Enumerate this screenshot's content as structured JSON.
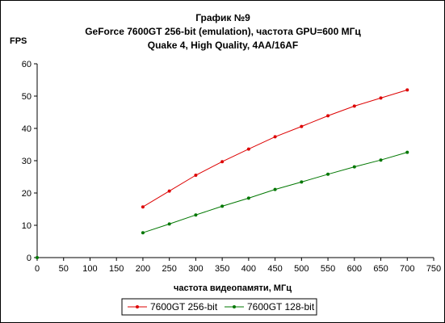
{
  "chart_data": {
    "type": "line",
    "title": [
      "График №9",
      "GeForce 7600GT 256-bit (emulation), частота GPU=600 МГц",
      "Quake 4, High Quality, 4AA/16AF"
    ],
    "xlabel": "частота видеопамяти, МГц",
    "ylabel": "FPS",
    "xlim": [
      0,
      750
    ],
    "ylim": [
      0,
      60
    ],
    "xticks": [
      0,
      50,
      100,
      150,
      200,
      250,
      300,
      350,
      400,
      450,
      500,
      550,
      600,
      650,
      700,
      750
    ],
    "yticks": [
      0,
      10,
      20,
      30,
      40,
      50,
      60
    ],
    "grid": false,
    "legend_position": "bottom",
    "series": [
      {
        "name": "7600GT 256-bit",
        "color": "#dd0000",
        "x": [
          200,
          250,
          300,
          350,
          400,
          450,
          500,
          550,
          600,
          650,
          700
        ],
        "y": [
          15.7,
          20.6,
          25.5,
          29.7,
          33.6,
          37.4,
          40.6,
          43.9,
          46.9,
          49.4,
          51.9
        ]
      },
      {
        "name": "7600GT 128-bit",
        "color": "#007700",
        "x": [
          200,
          250,
          300,
          350,
          400,
          450,
          500,
          550,
          600,
          650,
          700
        ],
        "y": [
          7.7,
          10.4,
          13.2,
          15.9,
          18.4,
          21.1,
          23.4,
          25.8,
          28.1,
          30.2,
          32.6
        ]
      }
    ],
    "origin_marker": {
      "x": 0,
      "y": 0,
      "color": "#007700"
    }
  }
}
